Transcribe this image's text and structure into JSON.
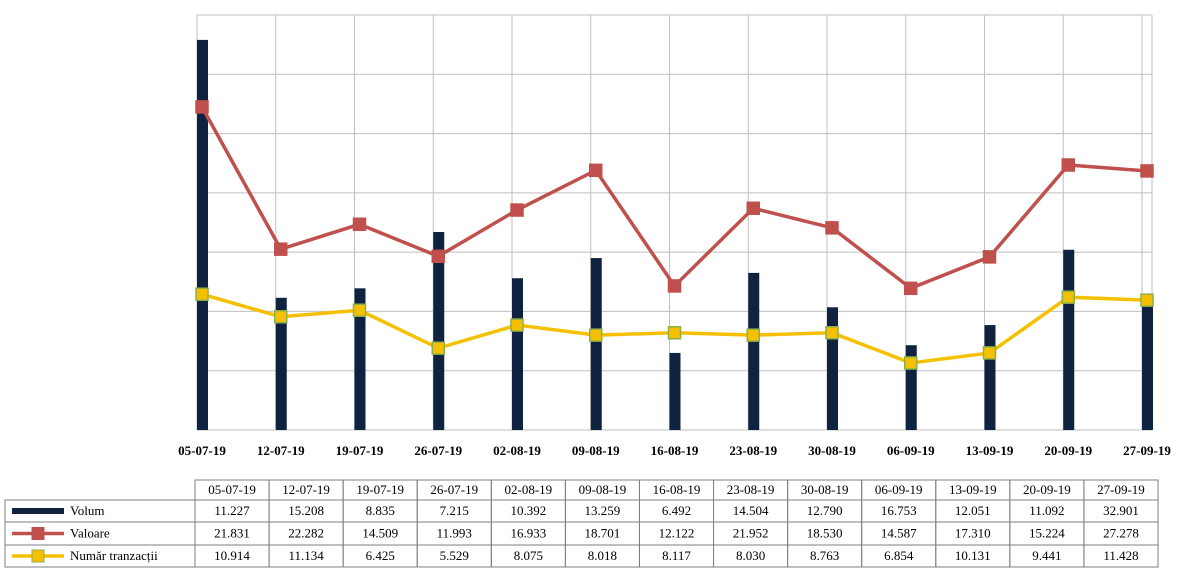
{
  "chart_data": {
    "type": "combo",
    "categories": [
      "05-07-19",
      "12-07-19",
      "19-07-19",
      "26-07-19",
      "02-08-19",
      "09-08-19",
      "16-08-19",
      "23-08-19",
      "30-08-19",
      "06-09-19",
      "13-09-19",
      "20-09-19",
      "27-09-19"
    ],
    "ylim": [
      0,
      7
    ],
    "yticks": [
      0,
      1,
      2,
      3,
      4,
      5,
      6,
      7
    ],
    "grid": true,
    "series": [
      {
        "name": "Volum",
        "type": "bar",
        "color": "#0f2341",
        "values": [
          6.58,
          2.23,
          2.39,
          3.34,
          2.56,
          2.9,
          1.3,
          2.65,
          2.07,
          1.43,
          1.77,
          3.04,
          2.23
        ]
      },
      {
        "name": "Valoare",
        "type": "line",
        "color": "#c0504d",
        "values": [
          5.45,
          3.05,
          3.47,
          2.93,
          3.71,
          4.38,
          2.43,
          3.74,
          3.41,
          2.39,
          2.92,
          4.47,
          4.37
        ]
      },
      {
        "name": "Număr tranzacții",
        "type": "line",
        "color": "#f5c000",
        "values": [
          2.29,
          1.91,
          2.02,
          1.38,
          1.77,
          1.6,
          1.64,
          1.6,
          1.64,
          1.13,
          1.3,
          2.24,
          2.19
        ]
      }
    ]
  },
  "table": {
    "rows": [
      [
        "11.227",
        "15.208",
        "8.835",
        "7.215",
        "10.392",
        "13.259",
        "6.492",
        "14.504",
        "12.790",
        "16.753",
        "12.051",
        "11.092",
        "32.901"
      ],
      [
        "21.831",
        "22.282",
        "14.509",
        "11.993",
        "16.933",
        "18.701",
        "12.122",
        "21.952",
        "18.530",
        "14.587",
        "17.310",
        "15.224",
        "27.278"
      ],
      [
        "10.914",
        "11.134",
        "6.425",
        "5.529",
        "8.075",
        "8.018",
        "8.117",
        "8.030",
        "8.763",
        "6.854",
        "10.131",
        "9.441",
        "11.428"
      ]
    ]
  }
}
